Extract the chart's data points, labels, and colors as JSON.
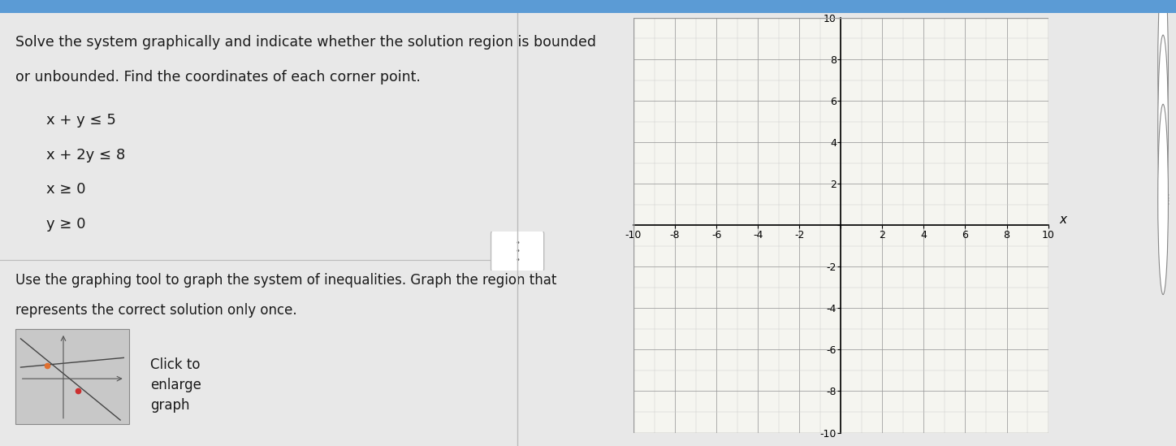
{
  "title_text_line1": "Solve the system graphically and indicate whether the solution region is bounded",
  "title_text_line2": "or unbounded. Find the coordinates of each corner point.",
  "inequalities": [
    "x + y ≤ 5",
    "x + 2y ≤ 8",
    "x ≥ 0",
    "y ≥ 0"
  ],
  "bottom_text1": "Use the graphing tool to graph the system of inequalities. Graph the region that",
  "bottom_text2": "represents the correct solution only once.",
  "click_text": [
    "Click to",
    "enlarge",
    "graph"
  ],
  "divider_text": "•\n•\n•",
  "axis_lim": [
    -10,
    10
  ],
  "major_tick_step": 2,
  "minor_tick_step": 1,
  "grid_major_color": "#999999",
  "grid_minor_color": "#cccccc",
  "bg_color": "#e8e8e8",
  "graph_bg": "#e8e8e8",
  "graph_plot_bg": "#f5f5f0",
  "left_bg": "#e8e8e8",
  "font_size_title": 12.5,
  "font_size_ineq": 13,
  "font_size_bottom": 12,
  "font_size_axis_label": 9,
  "text_color": "#1a1a1a",
  "divider_line_color": "#bbbbbb",
  "thumbnail_bg": "#c8c8c8",
  "thumbnail_dot_color1": "#e07030",
  "thumbnail_dot_color2": "#cc3030",
  "zoom_icon_color": "#444444",
  "graph_border_color": "#999999",
  "top_bar_color": "#5b9bd5"
}
